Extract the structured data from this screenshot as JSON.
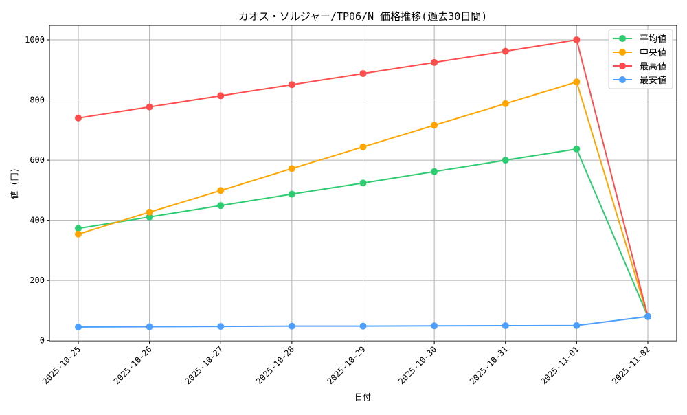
{
  "chart_data": {
    "type": "line",
    "title": "カオス・ソルジャー/TP06/N 価格推移(過去30日間)",
    "xlabel": "日付",
    "ylabel": "値 (円)",
    "categories": [
      "2025-10-25",
      "2025-10-26",
      "2025-10-27",
      "2025-10-28",
      "2025-10-29",
      "2025-10-30",
      "2025-10-31",
      "2025-11-01",
      "2025-11-02"
    ],
    "ylim": [
      -3,
      1048
    ],
    "yticks": [
      0,
      200,
      400,
      600,
      800,
      1000
    ],
    "grid": true,
    "legend_position": "top-right",
    "series": [
      {
        "name": "平均値",
        "color": "#2ecc71",
        "values": [
          373,
          411,
          449,
          487,
          524,
          562,
          600,
          637,
          80
        ]
      },
      {
        "name": "中央値",
        "color": "#ffa500",
        "values": [
          354,
          427,
          499,
          572,
          644,
          716,
          788,
          860,
          80
        ]
      },
      {
        "name": "最高値",
        "color": "#ff4d4d",
        "values": [
          740,
          777,
          814,
          851,
          888,
          925,
          962,
          1000,
          80
        ]
      },
      {
        "name": "最安値",
        "color": "#4d9fff",
        "values": [
          45,
          46,
          47,
          48,
          48,
          49,
          49.5,
          50,
          80
        ]
      }
    ]
  }
}
